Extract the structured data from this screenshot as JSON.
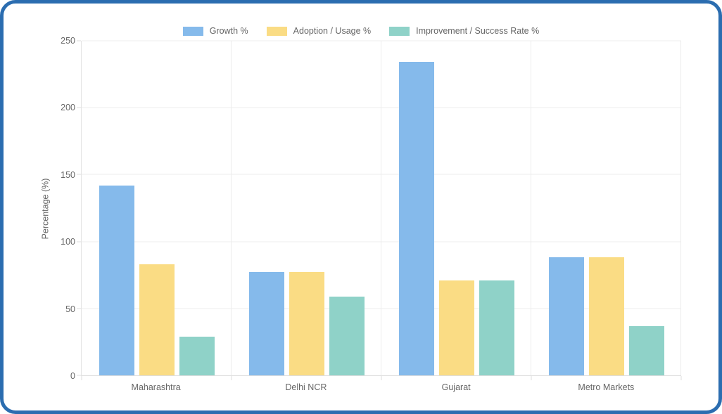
{
  "card": {
    "border_color": "#2B6DB0",
    "background": "#ffffff"
  },
  "chart_data": {
    "type": "bar",
    "title": "",
    "xlabel": "",
    "ylabel": "Percentage (%)",
    "categories": [
      "Maharashtra",
      "Delhi NCR",
      "Gujarat",
      "Metro Markets"
    ],
    "series": [
      {
        "name": "Growth %",
        "color": "#85BAEB",
        "values": [
          142,
          77,
          234,
          88
        ]
      },
      {
        "name": "Adoption / Usage %",
        "color": "#FADC84",
        "values": [
          83,
          77,
          71,
          88
        ]
      },
      {
        "name": "Improvement / Success Rate %",
        "color": "#8FD2C8",
        "values": [
          29,
          59,
          71,
          37
        ]
      }
    ],
    "ylim": [
      0,
      250
    ],
    "yticks": [
      0,
      50,
      100,
      150,
      200,
      250
    ],
    "grid": true,
    "legend_position": "top",
    "text_color": "#666666",
    "gridline_color": "#ececec"
  }
}
